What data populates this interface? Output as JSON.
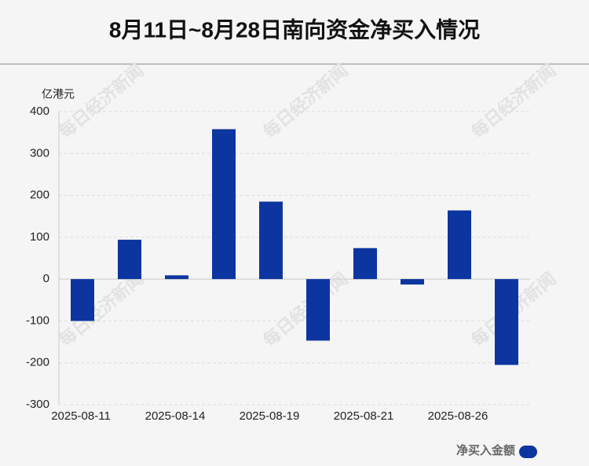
{
  "chart_data": {
    "type": "bar",
    "title": "8月11日~8月28日南向资金净买入情况",
    "y_label": "亿港元",
    "watermark": "每日经济新闻",
    "categories": [
      "2025-08-11",
      null,
      "2025-08-14",
      null,
      "2025-08-19",
      null,
      "2025-08-21",
      null,
      "2025-08-26",
      null
    ],
    "series": [
      {
        "name": "净买入金额",
        "color": "#0d35a0",
        "values": [
          -100,
          94,
          9,
          358,
          185,
          -147,
          74,
          -13,
          164,
          -205
        ]
      }
    ],
    "ylim": [
      -300,
      400
    ],
    "yticks": [
      -300,
      -200,
      -100,
      0,
      100,
      200,
      300,
      400
    ],
    "grid": true,
    "legend": "bottom-right"
  }
}
